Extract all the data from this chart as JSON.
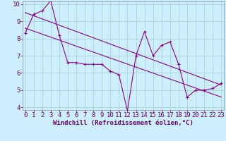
{
  "xlabel": "Windchill (Refroidissement éolien,°C)",
  "bg_color": "#cceeff",
  "grid_color": "#aad4d4",
  "line_color": "#880088",
  "x_data": [
    0,
    1,
    2,
    3,
    4,
    5,
    6,
    7,
    8,
    9,
    10,
    11,
    12,
    13,
    14,
    15,
    16,
    17,
    18,
    19,
    20,
    21,
    22,
    23
  ],
  "y_data": [
    8.3,
    9.4,
    9.6,
    10.2,
    8.2,
    6.6,
    6.6,
    6.5,
    6.5,
    6.5,
    6.1,
    5.9,
    3.8,
    7.0,
    8.4,
    7.0,
    7.6,
    7.8,
    6.5,
    4.6,
    5.0,
    5.0,
    5.1,
    5.4
  ],
  "trend1_x": [
    0,
    23
  ],
  "trend1_y": [
    9.5,
    5.3
  ],
  "trend2_x": [
    0,
    23
  ],
  "trend2_y": [
    8.6,
    4.6
  ],
  "ylim_min": 4,
  "ylim_max": 10,
  "xlim_min": 0,
  "xlim_max": 23,
  "yticks": [
    4,
    5,
    6,
    7,
    8,
    9,
    10
  ],
  "xticks": [
    0,
    1,
    2,
    3,
    4,
    5,
    6,
    7,
    8,
    9,
    10,
    11,
    12,
    13,
    14,
    15,
    16,
    17,
    18,
    19,
    20,
    21,
    22,
    23
  ],
  "tick_fontsize": 6.5,
  "xlabel_fontsize": 6.5,
  "marker_size": 3,
  "linewidth": 0.8
}
